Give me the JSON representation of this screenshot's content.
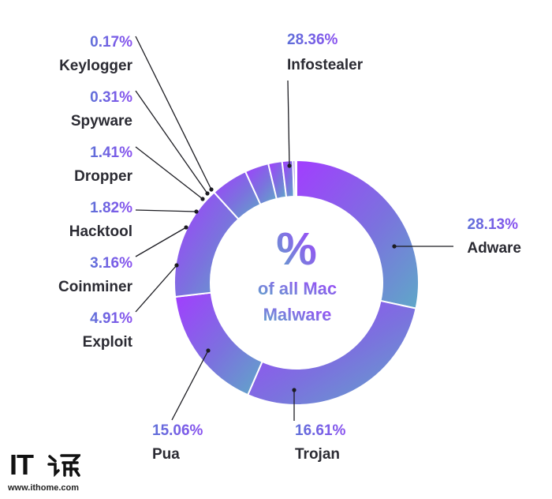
{
  "chart_data": {
    "type": "pie",
    "donut": true,
    "center_symbol": "%",
    "center_line1": "of all Mac",
    "center_line2": "Malware",
    "slices": [
      {
        "label": "Infostealer",
        "value": 28.36,
        "pct_text": "28.36%"
      },
      {
        "label": "Adware",
        "value": 28.13,
        "pct_text": "28.13%"
      },
      {
        "label": "Trojan",
        "value": 16.61,
        "pct_text": "16.61%"
      },
      {
        "label": "Pua",
        "value": 15.06,
        "pct_text": "15.06%"
      },
      {
        "label": "Exploit",
        "value": 4.91,
        "pct_text": "4.91%"
      },
      {
        "label": "Coinminer",
        "value": 3.16,
        "pct_text": "3.16%"
      },
      {
        "label": "Hacktool",
        "value": 1.82,
        "pct_text": "1.82%"
      },
      {
        "label": "Dropper",
        "value": 1.41,
        "pct_text": "1.41%"
      },
      {
        "label": "Spyware",
        "value": 0.31,
        "pct_text": "0.31%"
      },
      {
        "label": "Keylogger",
        "value": 0.17,
        "pct_text": "0.17%"
      }
    ],
    "colors": {
      "gradient_start": "#a23dff",
      "gradient_mid": "#7b72de",
      "gradient_end": "#5fa8c8",
      "label_text": "#2b2b33"
    }
  },
  "watermark": {
    "logo_text": "IT",
    "url": "www.ithome.com"
  }
}
